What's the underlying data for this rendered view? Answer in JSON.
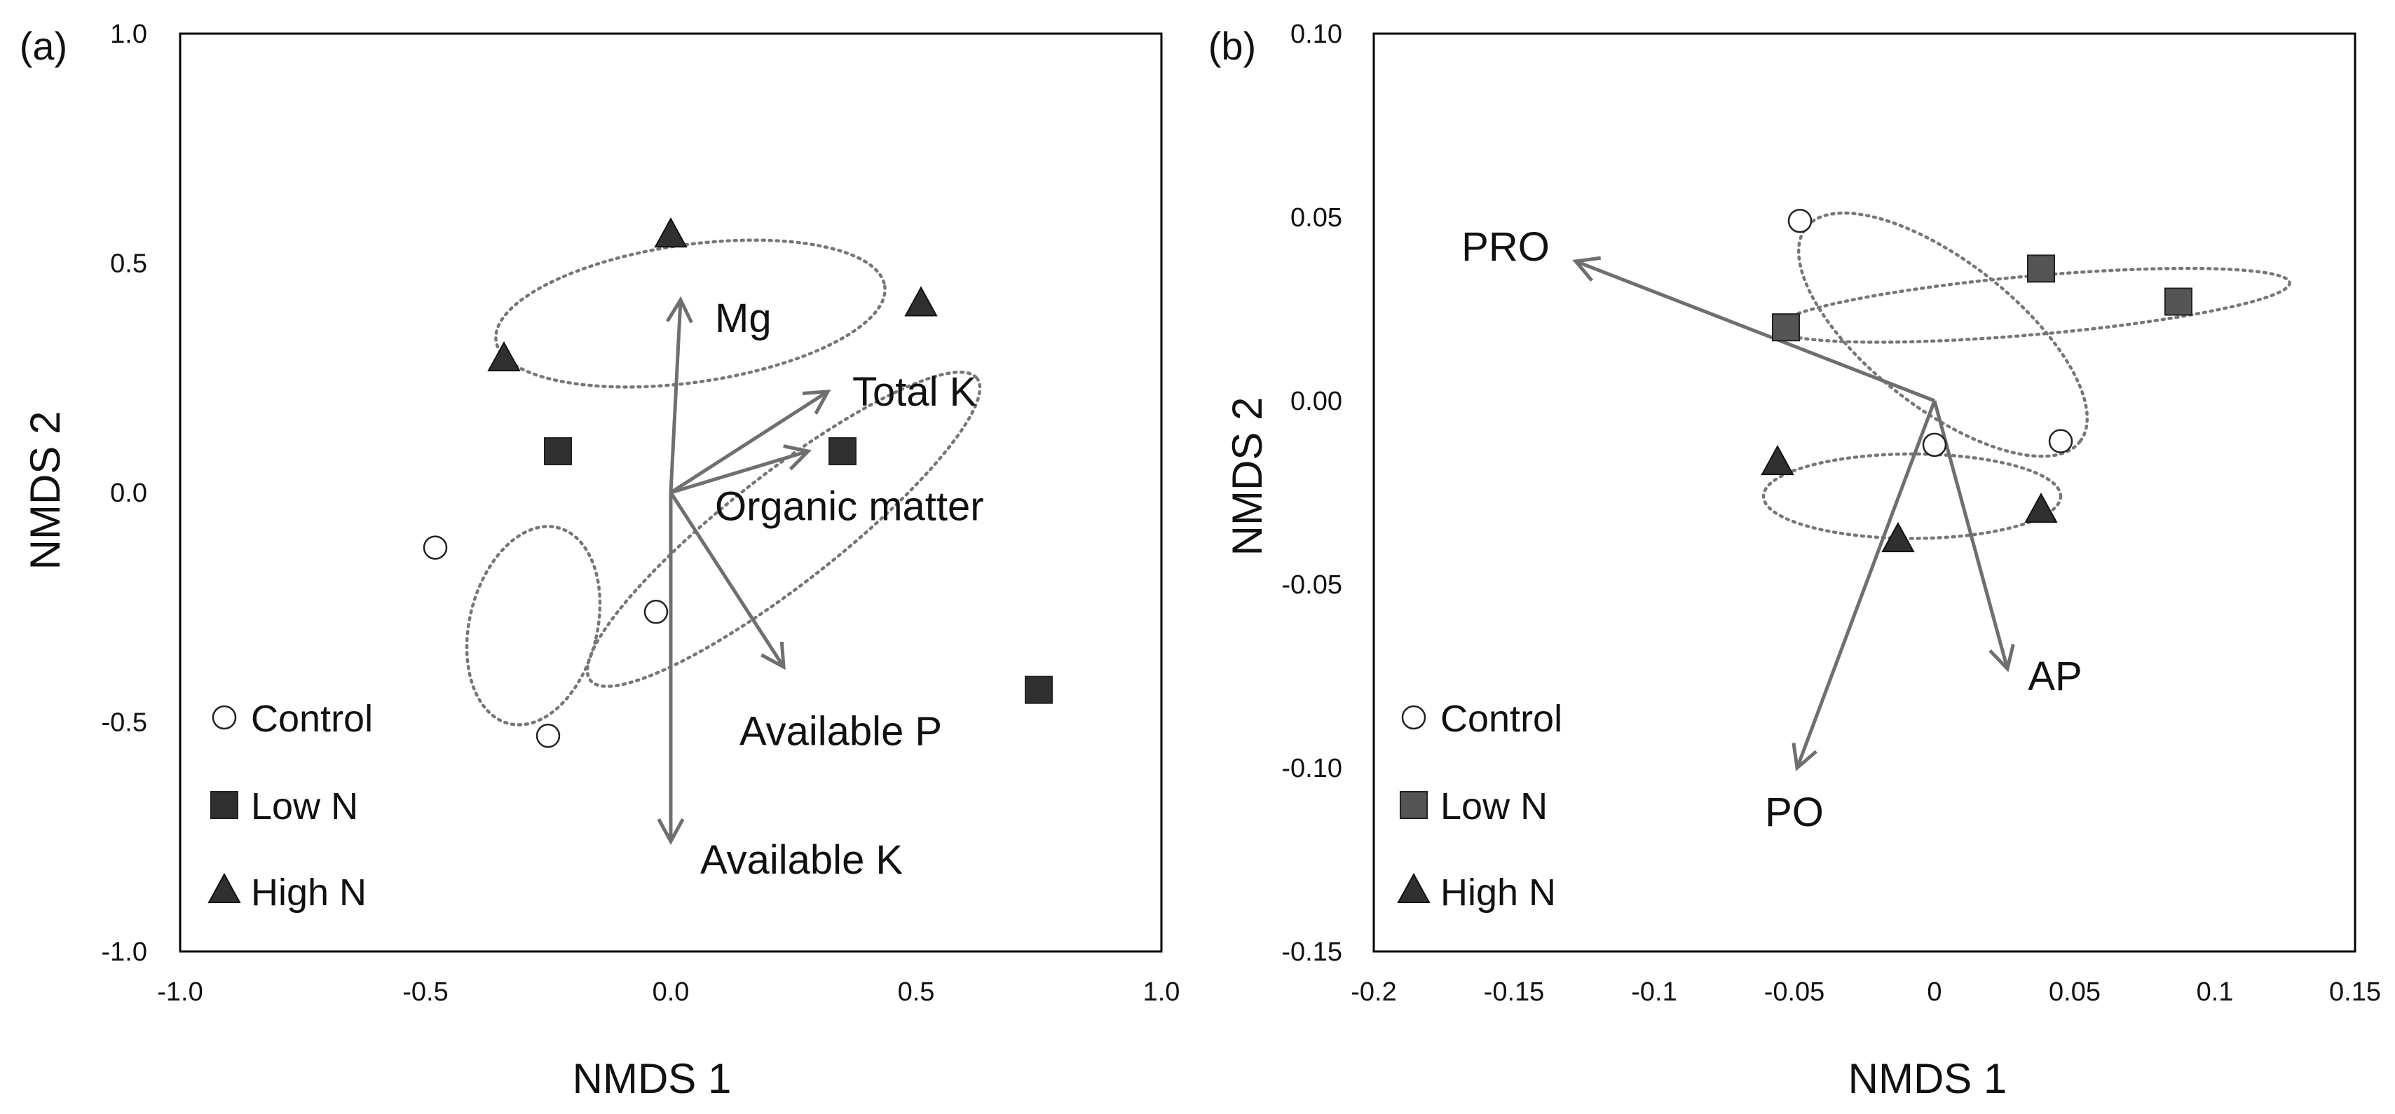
{
  "chart_data": [
    {
      "type": "scatter",
      "panel_label": "(a)",
      "xlabel": "NMDS 1",
      "ylabel": "NMDS 2",
      "xlim": [
        -1.0,
        1.0
      ],
      "ylim": [
        -1.0,
        1.0
      ],
      "x_ticks": [
        -1.0,
        -0.5,
        0.0,
        0.5,
        1.0
      ],
      "x_tick_labels": [
        "-1.0",
        "-0.5",
        "0.0",
        "0.5",
        "1.0"
      ],
      "y_ticks": [
        -1.0,
        -0.5,
        0.0,
        0.5,
        1.0
      ],
      "y_tick_labels": [
        "-1.0",
        "-0.5",
        "0.0",
        "0.5",
        "1.0"
      ],
      "grid": false,
      "legend_position": "bottom-left",
      "series": [
        {
          "name": "Control",
          "marker": "circle",
          "color": "#ffffff",
          "points": [
            [
              -0.48,
              -0.12
            ],
            [
              -0.03,
              -0.26
            ],
            [
              -0.25,
              -0.53
            ]
          ]
        },
        {
          "name": "Low N",
          "marker": "square",
          "color": "#303030",
          "points": [
            [
              -0.23,
              0.09
            ],
            [
              0.35,
              0.09
            ],
            [
              0.75,
              -0.43
            ]
          ]
        },
        {
          "name": "High N",
          "marker": "triangle",
          "color": "#303030",
          "points": [
            [
              0.0,
              0.56
            ],
            [
              0.51,
              0.41
            ],
            [
              -0.34,
              0.29
            ]
          ]
        }
      ],
      "ellipses": [
        {
          "group": "High N",
          "center": [
            0.04,
            0.39
          ],
          "rx": 0.4,
          "ry": 0.15,
          "angle_deg": -8
        },
        {
          "group": "Low N",
          "center": [
            0.23,
            -0.08
          ],
          "rx": 0.5,
          "ry": 0.12,
          "angle_deg": -38
        },
        {
          "group": "Control",
          "center": [
            -0.28,
            -0.29
          ],
          "rx": 0.13,
          "ry": 0.22,
          "angle_deg": 14
        }
      ],
      "arrows": [
        {
          "label": "Mg",
          "end": [
            0.02,
            0.42
          ],
          "label_pos": [
            0.09,
            0.38
          ],
          "anchor": "start"
        },
        {
          "label": "Total K",
          "end": [
            0.32,
            0.22
          ],
          "label_pos": [
            0.37,
            0.22
          ],
          "anchor": "start"
        },
        {
          "label": "Organic matter",
          "end": [
            0.28,
            0.09
          ],
          "label_pos": [
            0.09,
            -0.03
          ],
          "anchor": "start"
        },
        {
          "label": "Available P",
          "end": [
            0.23,
            -0.38
          ],
          "label_pos": [
            0.14,
            -0.52
          ],
          "anchor": "start"
        },
        {
          "label": "Available K",
          "end": [
            0.0,
            -0.76
          ],
          "label_pos": [
            0.06,
            -0.8
          ],
          "anchor": "start"
        }
      ]
    },
    {
      "type": "scatter",
      "panel_label": "(b)",
      "xlabel": "NMDS 1",
      "ylabel": "NMDS 2",
      "xlim": [
        -0.2,
        0.15
      ],
      "ylim": [
        -0.15,
        0.1
      ],
      "x_ticks": [
        -0.2,
        -0.15,
        -0.1,
        -0.05,
        0.0,
        0.05,
        0.1,
        0.15
      ],
      "x_tick_labels": [
        "-0.2",
        "-0.15",
        "-0.1",
        "-0.05",
        "0",
        "0.05",
        "0.1",
        "0.15"
      ],
      "y_ticks": [
        -0.15,
        -0.1,
        -0.05,
        0.0,
        0.05,
        0.1
      ],
      "y_tick_labels": [
        "-0.15",
        "-0.10",
        "-0.05",
        "0.00",
        "0.05",
        "0.10"
      ],
      "grid": false,
      "legend_position": "bottom-left",
      "series": [
        {
          "name": "Control",
          "marker": "circle",
          "color": "#ffffff",
          "points": [
            [
              -0.048,
              0.049
            ],
            [
              0.0,
              -0.012
            ],
            [
              0.045,
              -0.011
            ]
          ]
        },
        {
          "name": "Low N",
          "marker": "square",
          "color": "#555555",
          "points": [
            [
              -0.053,
              0.02
            ],
            [
              0.038,
              0.036
            ],
            [
              0.087,
              0.027
            ]
          ]
        },
        {
          "name": "High N",
          "marker": "triangle",
          "color": "#303030",
          "points": [
            [
              -0.056,
              -0.017
            ],
            [
              -0.013,
              -0.038
            ],
            [
              0.038,
              -0.03
            ]
          ]
        }
      ],
      "ellipses": [
        {
          "group": "Control",
          "center": [
            0.003,
            0.018
          ],
          "rx": 0.062,
          "ry": 0.02,
          "angle_deg": 38
        },
        {
          "group": "Low N",
          "center": [
            0.035,
            0.026
          ],
          "rx": 0.092,
          "ry": 0.008,
          "angle_deg": -5
        },
        {
          "group": "High N",
          "center": [
            -0.008,
            -0.026
          ],
          "rx": 0.053,
          "ry": 0.0115,
          "angle_deg": 0
        }
      ],
      "arrows": [
        {
          "label": "PRO",
          "end": [
            -0.128,
            0.038
          ],
          "label_pos": [
            -0.153,
            0.042
          ],
          "anchor": "middle"
        },
        {
          "label": "AP",
          "end": [
            0.026,
            -0.073
          ],
          "label_pos": [
            0.043,
            -0.075
          ],
          "anchor": "middle"
        },
        {
          "label": "PO",
          "end": [
            -0.049,
            -0.1
          ],
          "label_pos": [
            -0.05,
            -0.112
          ],
          "anchor": "middle"
        }
      ]
    }
  ]
}
